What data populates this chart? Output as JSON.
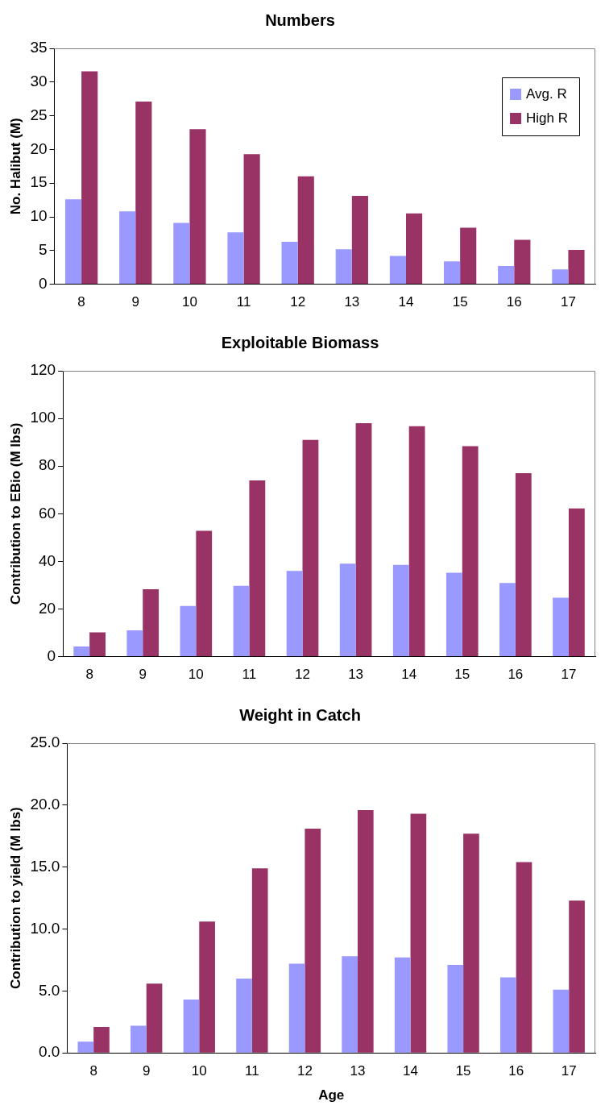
{
  "chart_data": [
    {
      "type": "bar",
      "title": "Numbers",
      "ylabel": "No. Halibut (M)",
      "categories": [
        "8",
        "9",
        "10",
        "11",
        "12",
        "13",
        "14",
        "15",
        "16",
        "17"
      ],
      "ylim": [
        0,
        35
      ],
      "yticks": [
        0,
        5,
        10,
        15,
        20,
        25,
        30,
        35
      ],
      "legend": "top right",
      "series": [
        {
          "name": "Avg. R",
          "color": "#9999ff",
          "values": [
            12.6,
            10.8,
            9.1,
            7.7,
            6.3,
            5.2,
            4.2,
            3.4,
            2.7,
            2.2
          ]
        },
        {
          "name": "High R",
          "color": "#993366",
          "values": [
            31.6,
            27.1,
            23.0,
            19.3,
            16.0,
            13.1,
            10.5,
            8.4,
            6.6,
            5.1
          ]
        }
      ]
    },
    {
      "type": "bar",
      "title": "Exploitable Biomass",
      "ylabel": "Contribution to EBio (M lbs)",
      "categories": [
        "8",
        "9",
        "10",
        "11",
        "12",
        "13",
        "14",
        "15",
        "16",
        "17"
      ],
      "ylim": [
        0,
        120
      ],
      "yticks": [
        0,
        20,
        40,
        60,
        80,
        100,
        120
      ],
      "series": [
        {
          "color": "#9999ff",
          "values": [
            4.3,
            11,
            21.3,
            29.7,
            36,
            39,
            38.5,
            35.2,
            30.9,
            24.7
          ]
        },
        {
          "color": "#993366",
          "values": [
            10.2,
            28.3,
            52.8,
            74,
            91,
            98,
            96.7,
            88.4,
            77,
            62.2
          ]
        }
      ]
    },
    {
      "type": "bar",
      "title": "Weight in Catch",
      "xlabel": "Age",
      "ylabel": "Contribution to yield (M lbs)",
      "categories": [
        "8",
        "9",
        "10",
        "11",
        "12",
        "13",
        "14",
        "15",
        "16",
        "17"
      ],
      "ylim": [
        0,
        25
      ],
      "yticks": [
        {
          "value": 0,
          "label": "0.0"
        },
        {
          "value": 5,
          "label": "5.0"
        },
        {
          "value": 10,
          "label": "10.0"
        },
        {
          "value": 15,
          "label": "15.0"
        },
        {
          "value": 20,
          "label": "20.0"
        },
        {
          "value": 25,
          "label": "25.0"
        }
      ],
      "series": [
        {
          "color": "#9999ff",
          "values": [
            0.9,
            2.2,
            4.3,
            6.0,
            7.2,
            7.8,
            7.7,
            7.1,
            6.1,
            5.1
          ]
        },
        {
          "color": "#993366",
          "values": [
            2.1,
            5.6,
            10.6,
            14.9,
            18.1,
            19.6,
            19.3,
            17.7,
            15.4,
            12.3
          ]
        }
      ]
    }
  ]
}
